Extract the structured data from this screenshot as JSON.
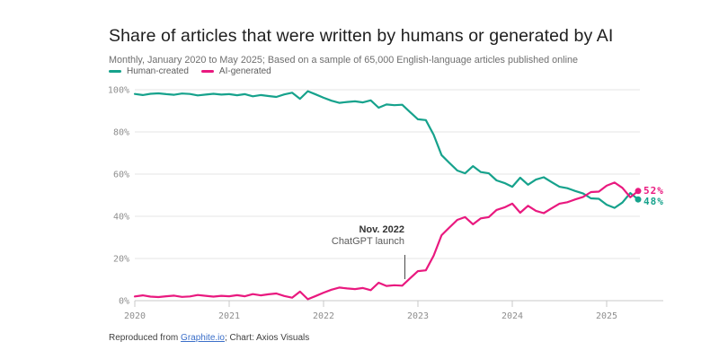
{
  "header": {
    "title": "Share of articles that were written by humans or generated by AI",
    "subtitle": "Monthly, January 2020 to May 2025; Based on a sample of 65,000 English-language articles published online"
  },
  "footer": {
    "prefix": "Reproduced from ",
    "link": "Graphite.io",
    "suffix": "; Chart: Axios Visuals"
  },
  "colors": {
    "human": "#16a28c",
    "ai": "#e9197f",
    "grid": "#e4e4e4",
    "axis": "#c9c9c9",
    "tick_text": "#8e8e8e"
  },
  "chart_data": {
    "type": "line",
    "title": "Share of articles that were written by humans or generated by AI",
    "x_unit": "month",
    "x_range": "January 2020 to May 2025",
    "x_tick_labels": [
      "2020",
      "2021",
      "2022",
      "2023",
      "2024",
      "2025"
    ],
    "y_tick_values": [
      0,
      20,
      40,
      60,
      80,
      100
    ],
    "y_tick_labels": [
      "0%",
      "20%",
      "40%",
      "60%",
      "80%",
      "100%"
    ],
    "ylim": [
      0,
      100
    ],
    "grid": "horizontal",
    "legend_position": "top-left",
    "annotation": {
      "title": "Nov. 2022",
      "subtitle": "ChatGPT launch",
      "x_month_index": 34
    },
    "end_labels": {
      "ai": "52%",
      "human": "48%"
    },
    "series": [
      {
        "name": "Human-created",
        "color": "#16a28c",
        "values": [
          98.0,
          97.5,
          98.1,
          98.3,
          97.9,
          97.6,
          98.2,
          98.0,
          97.3,
          97.7,
          98.1,
          97.7,
          97.9,
          97.4,
          97.9,
          96.9,
          97.5,
          97.0,
          96.6,
          97.8,
          98.6,
          95.7,
          99.3,
          97.8,
          96.2,
          94.8,
          93.8,
          94.2,
          94.5,
          94.0,
          95.0,
          91.5,
          93.0,
          92.7,
          92.9,
          89.4,
          86.0,
          85.6,
          78.7,
          69.0,
          65.3,
          61.7,
          60.4,
          63.8,
          61.0,
          60.4,
          57.0,
          55.8,
          54.0,
          58.3,
          55.0,
          57.4,
          58.5,
          56.2,
          54.0,
          53.3,
          52.0,
          50.8,
          48.5,
          48.3,
          45.5,
          44.0,
          46.5,
          51.0,
          48.0
        ]
      },
      {
        "name": "AI-generated",
        "color": "#e9197f",
        "values": [
          2.0,
          2.5,
          1.9,
          1.7,
          2.1,
          2.4,
          1.8,
          2.0,
          2.7,
          2.3,
          1.9,
          2.3,
          2.1,
          2.6,
          2.1,
          3.1,
          2.5,
          3.0,
          3.4,
          2.2,
          1.4,
          4.3,
          0.7,
          2.2,
          3.8,
          5.2,
          6.2,
          5.8,
          5.5,
          6.0,
          5.0,
          8.5,
          7.0,
          7.3,
          7.1,
          10.6,
          14.0,
          14.4,
          21.3,
          31.0,
          34.7,
          38.3,
          39.6,
          36.2,
          39.0,
          39.6,
          43.0,
          44.2,
          46.0,
          41.7,
          45.0,
          42.6,
          41.5,
          43.8,
          46.0,
          46.7,
          48.0,
          49.2,
          51.5,
          51.7,
          54.5,
          56.0,
          53.5,
          49.0,
          52.0
        ]
      }
    ]
  }
}
